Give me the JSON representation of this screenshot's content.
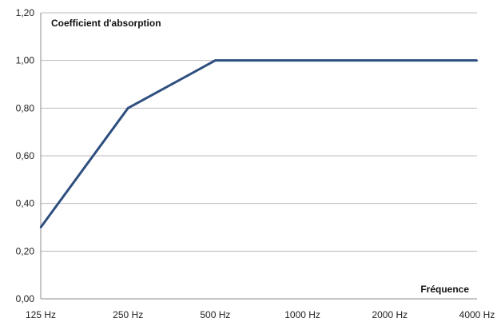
{
  "chart_data": {
    "type": "line",
    "title": "",
    "ylabel": "Coefficient d'absorption",
    "xlabel": "Fréquence",
    "categories": [
      "125 Hz",
      "250 Hz",
      "500 Hz",
      "1000 Hz",
      "2000 Hz",
      "4000 Hz"
    ],
    "y_ticks": [
      "0,00",
      "0,20",
      "0,40",
      "0,60",
      "0,80",
      "1,00",
      "1,20"
    ],
    "ylim": [
      0,
      1.2
    ],
    "grid": true,
    "legend": "none",
    "series": [
      {
        "values": [
          0.3,
          0.8,
          1.0,
          1.0,
          1.0,
          1.0
        ],
        "color": "#2f4f7f"
      }
    ]
  }
}
